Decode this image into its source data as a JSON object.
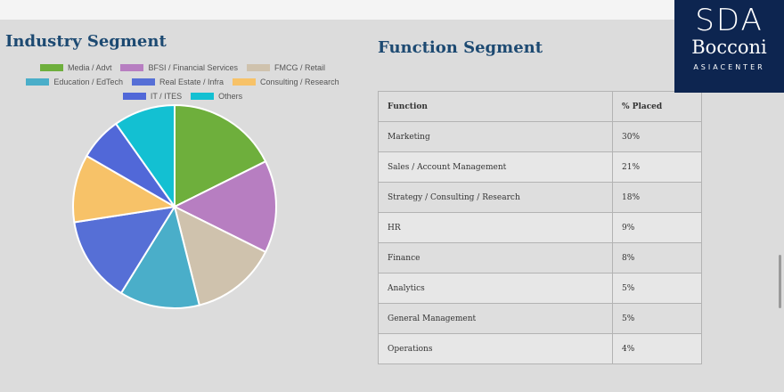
{
  "industry_title": "Industry Segment",
  "function_title": "Function Segment",
  "logo": {
    "line1": "SDA",
    "line2": "Bocconi",
    "line3": "ASIACENTER"
  },
  "chart_data": {
    "type": "pie",
    "title": "Industry Segment",
    "legend_position": "top",
    "categories": [
      "Media / Advt",
      "BFSI / Financial Services",
      "FMCG / Retail",
      "Education / EdTech",
      "Real Estate / Infra",
      "Consulting / Research",
      "IT / ITES",
      "Others"
    ],
    "values": [
      18,
      15,
      14,
      13,
      14,
      11,
      7,
      10
    ],
    "colors": [
      "#6eaf3c",
      "#b77ec1",
      "#cfc2ad",
      "#4aaec9",
      "#566fd6",
      "#f7c268",
      "#5168d8",
      "#13c0d2"
    ]
  },
  "table": {
    "headers": [
      "Function",
      "% Placed"
    ],
    "rows": [
      [
        "Marketing",
        "30%"
      ],
      [
        "Sales / Account Management",
        "21%"
      ],
      [
        "Strategy / Consulting / Research",
        "18%"
      ],
      [
        "HR",
        "9%"
      ],
      [
        "Finance",
        "8%"
      ],
      [
        "Analytics",
        "5%"
      ],
      [
        "General Management",
        "5%"
      ],
      [
        "Operations",
        "4%"
      ]
    ]
  }
}
